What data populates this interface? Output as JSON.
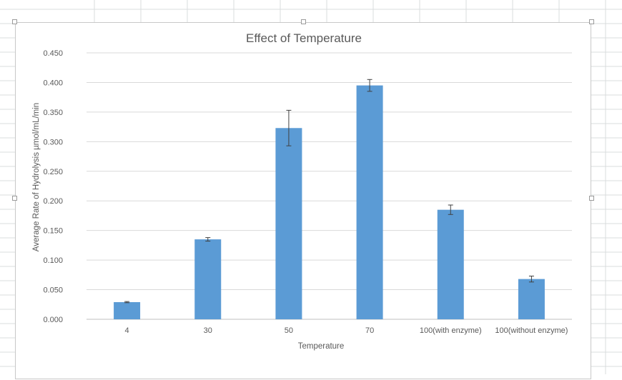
{
  "chart_data": {
    "type": "bar",
    "title": "Effect of Temperature",
    "xlabel": "Temperature",
    "ylabel": "Average Rate of Hydrolysis µmol/mL/min",
    "categories": [
      "4",
      "30",
      "50",
      "70",
      "100(with enzyme)",
      "100(without enzyme)"
    ],
    "values": [
      0.029,
      0.135,
      0.323,
      0.395,
      0.185,
      0.068
    ],
    "error_bars": [
      0.001,
      0.003,
      0.03,
      0.01,
      0.008,
      0.005
    ],
    "ylim": [
      0,
      0.45
    ],
    "yticks": [
      "0.000",
      "0.050",
      "0.100",
      "0.150",
      "0.200",
      "0.250",
      "0.300",
      "0.350",
      "0.400",
      "0.450"
    ],
    "grid": true,
    "legend": "none",
    "bar_color": "#5b9bd5",
    "gridline_color": "#d9d9d9"
  }
}
